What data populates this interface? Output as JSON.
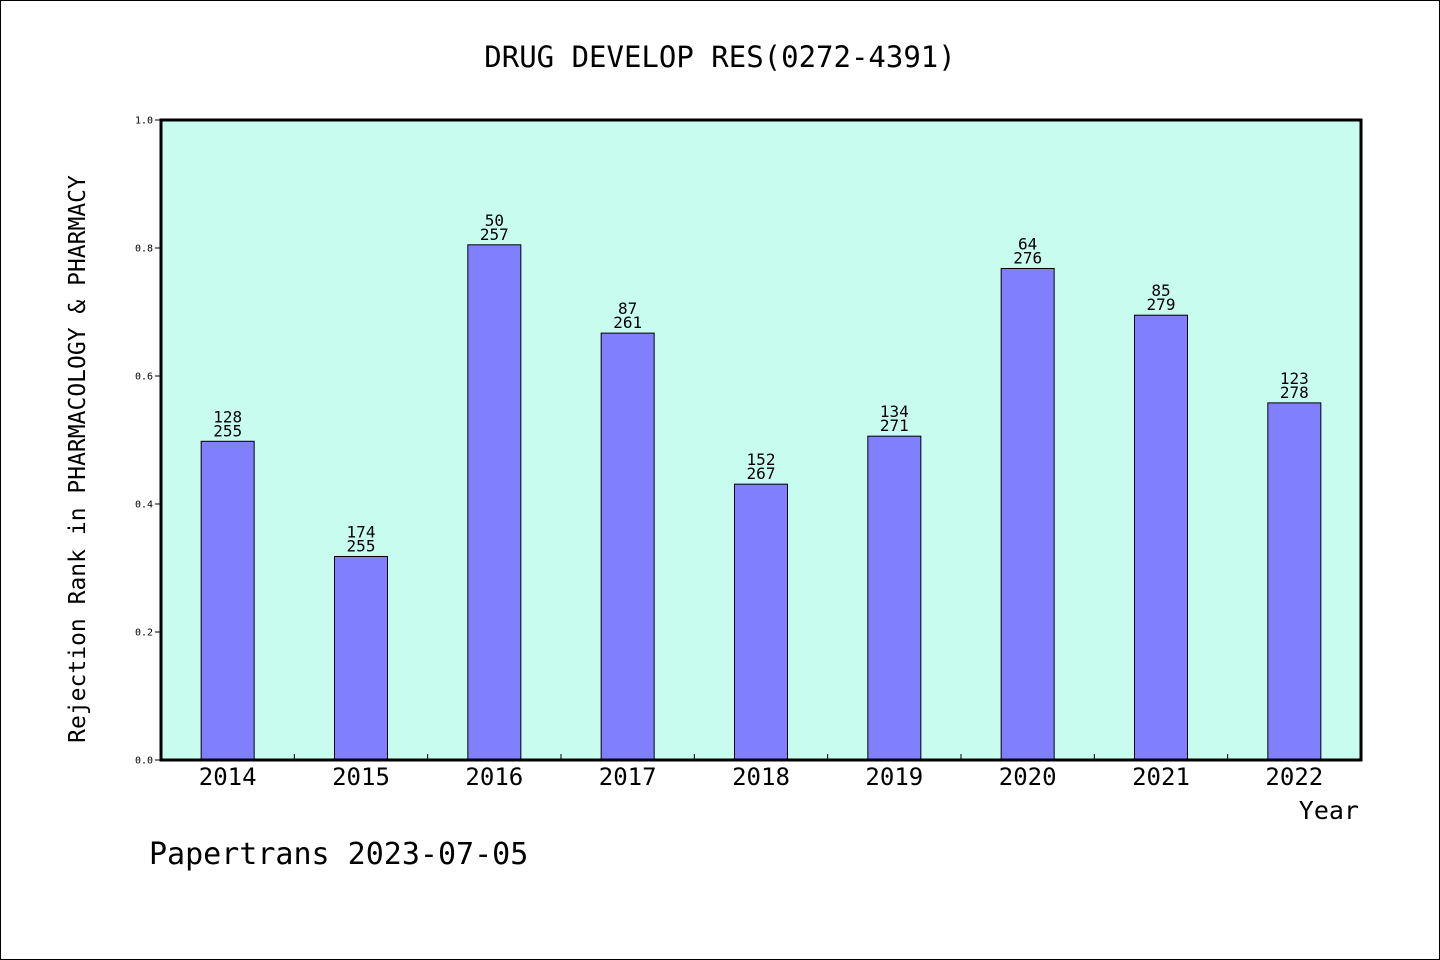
{
  "colors": {
    "plot_background": "#c8fcef",
    "bar_fill": "#8080ff",
    "bar_stroke": "#000000",
    "axis": "#000000",
    "text": "#000000"
  },
  "footer_text": "Papertrans 2023-07-05",
  "chart_data": {
    "type": "bar",
    "title": "DRUG DEVELOP RES(0272-4391)",
    "xlabel": "Year",
    "ylabel": "Rejection Rank in PHARMACOLOGY & PHARMACY",
    "categories": [
      "2014",
      "2015",
      "2016",
      "2017",
      "2018",
      "2019",
      "2020",
      "2021",
      "2022"
    ],
    "values": [
      0.498,
      0.318,
      0.805,
      0.667,
      0.431,
      0.506,
      0.768,
      0.695,
      0.558
    ],
    "annotations": [
      [
        "128",
        "255"
      ],
      [
        "174",
        "255"
      ],
      [
        "50",
        "257"
      ],
      [
        "87",
        "261"
      ],
      [
        "152",
        "267"
      ],
      [
        "134",
        "271"
      ],
      [
        "64",
        "276"
      ],
      [
        "85",
        "279"
      ],
      [
        "123",
        "278"
      ]
    ],
    "ylim": [
      0,
      1.0
    ],
    "yticks": [
      "0.0",
      "0.2",
      "0.4",
      "0.6",
      "0.8",
      "1.0"
    ],
    "grid": false,
    "legend": "none"
  }
}
